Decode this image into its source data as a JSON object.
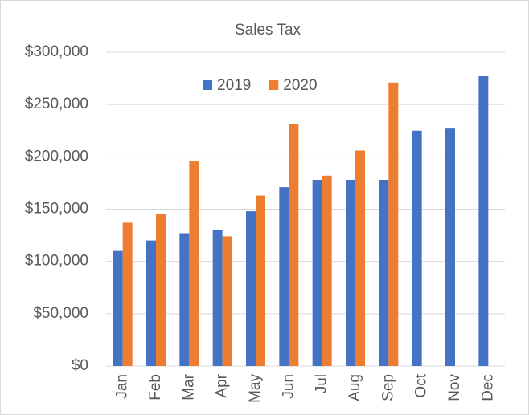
{
  "chart_data": {
    "type": "bar",
    "title": "Sales Tax",
    "categories": [
      "Jan",
      "Feb",
      "Mar",
      "Apr",
      "May",
      "Jun",
      "Jul",
      "Aug",
      "Sep",
      "Oct",
      "Nov",
      "Dec"
    ],
    "series": [
      {
        "name": "2019",
        "color": "#4472c4",
        "values": [
          110000,
          120000,
          127000,
          130000,
          148000,
          171000,
          178000,
          178000,
          178000,
          225000,
          227000,
          277000
        ]
      },
      {
        "name": "2020",
        "color": "#ed7d31",
        "values": [
          137000,
          145000,
          196000,
          124000,
          163000,
          231000,
          182000,
          206000,
          271000,
          null,
          null,
          null
        ]
      }
    ],
    "ylim": [
      0,
      300000
    ],
    "yticks": [
      {
        "value": 0,
        "label": "$0"
      },
      {
        "value": 50000,
        "label": "$50,000"
      },
      {
        "value": 100000,
        "label": "$100,000"
      },
      {
        "value": 150000,
        "label": "$150,000"
      },
      {
        "value": 200000,
        "label": "$200,000"
      },
      {
        "value": 250000,
        "label": "$250,000"
      },
      {
        "value": 300000,
        "label": "$300,000"
      }
    ],
    "grid": true,
    "legend": "top"
  }
}
